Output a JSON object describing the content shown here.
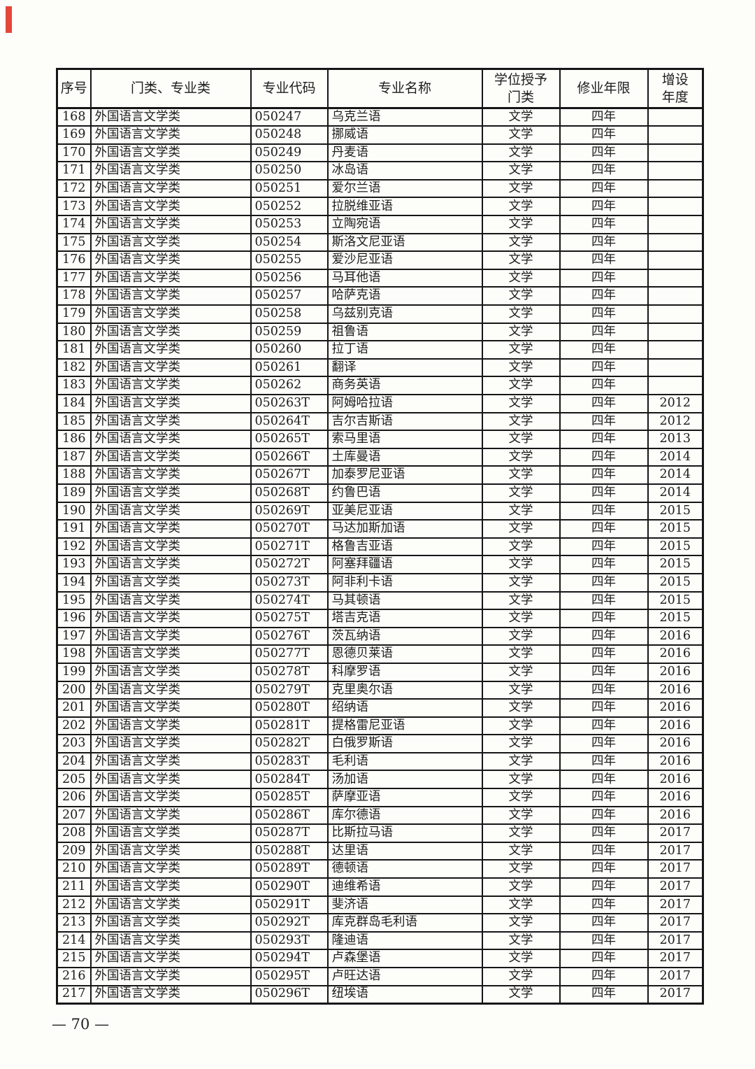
{
  "colors": {
    "accent_red": "#e4463a",
    "border": "#161616",
    "text": "#1c1c1c",
    "background": "#fdfdfa"
  },
  "page": {
    "number": "— 70 —"
  },
  "table": {
    "headers": [
      "序号",
      "门类、专业类",
      "专业代码",
      "专业名称",
      "学位授予\n门类",
      "修业年限",
      "增设\n年度"
    ],
    "rows": [
      [
        "168",
        "外国语言文学类",
        "050247",
        "乌克兰语",
        "文学",
        "四年",
        ""
      ],
      [
        "169",
        "外国语言文学类",
        "050248",
        "挪威语",
        "文学",
        "四年",
        ""
      ],
      [
        "170",
        "外国语言文学类",
        "050249",
        "丹麦语",
        "文学",
        "四年",
        ""
      ],
      [
        "171",
        "外国语言文学类",
        "050250",
        "冰岛语",
        "文学",
        "四年",
        ""
      ],
      [
        "172",
        "外国语言文学类",
        "050251",
        "爱尔兰语",
        "文学",
        "四年",
        ""
      ],
      [
        "173",
        "外国语言文学类",
        "050252",
        "拉脱维亚语",
        "文学",
        "四年",
        ""
      ],
      [
        "174",
        "外国语言文学类",
        "050253",
        "立陶宛语",
        "文学",
        "四年",
        ""
      ],
      [
        "175",
        "外国语言文学类",
        "050254",
        "斯洛文尼亚语",
        "文学",
        "四年",
        ""
      ],
      [
        "176",
        "外国语言文学类",
        "050255",
        "爱沙尼亚语",
        "文学",
        "四年",
        ""
      ],
      [
        "177",
        "外国语言文学类",
        "050256",
        "马耳他语",
        "文学",
        "四年",
        ""
      ],
      [
        "178",
        "外国语言文学类",
        "050257",
        "哈萨克语",
        "文学",
        "四年",
        ""
      ],
      [
        "179",
        "外国语言文学类",
        "050258",
        "乌兹别克语",
        "文学",
        "四年",
        ""
      ],
      [
        "180",
        "外国语言文学类",
        "050259",
        "祖鲁语",
        "文学",
        "四年",
        ""
      ],
      [
        "181",
        "外国语言文学类",
        "050260",
        "拉丁语",
        "文学",
        "四年",
        ""
      ],
      [
        "182",
        "外国语言文学类",
        "050261",
        "翻译",
        "文学",
        "四年",
        ""
      ],
      [
        "183",
        "外国语言文学类",
        "050262",
        "商务英语",
        "文学",
        "四年",
        ""
      ],
      [
        "184",
        "外国语言文学类",
        "050263T",
        "阿姆哈拉语",
        "文学",
        "四年",
        "2012"
      ],
      [
        "185",
        "外国语言文学类",
        "050264T",
        "吉尔吉斯语",
        "文学",
        "四年",
        "2012"
      ],
      [
        "186",
        "外国语言文学类",
        "050265T",
        "索马里语",
        "文学",
        "四年",
        "2013"
      ],
      [
        "187",
        "外国语言文学类",
        "050266T",
        "土库曼语",
        "文学",
        "四年",
        "2014"
      ],
      [
        "188",
        "外国语言文学类",
        "050267T",
        "加泰罗尼亚语",
        "文学",
        "四年",
        "2014"
      ],
      [
        "189",
        "外国语言文学类",
        "050268T",
        "约鲁巴语",
        "文学",
        "四年",
        "2014"
      ],
      [
        "190",
        "外国语言文学类",
        "050269T",
        "亚美尼亚语",
        "文学",
        "四年",
        "2015"
      ],
      [
        "191",
        "外国语言文学类",
        "050270T",
        "马达加斯加语",
        "文学",
        "四年",
        "2015"
      ],
      [
        "192",
        "外国语言文学类",
        "050271T",
        "格鲁吉亚语",
        "文学",
        "四年",
        "2015"
      ],
      [
        "193",
        "外国语言文学类",
        "050272T",
        "阿塞拜疆语",
        "文学",
        "四年",
        "2015"
      ],
      [
        "194",
        "外国语言文学类",
        "050273T",
        "阿非利卡语",
        "文学",
        "四年",
        "2015"
      ],
      [
        "195",
        "外国语言文学类",
        "050274T",
        "马其顿语",
        "文学",
        "四年",
        "2015"
      ],
      [
        "196",
        "外国语言文学类",
        "050275T",
        "塔吉克语",
        "文学",
        "四年",
        "2015"
      ],
      [
        "197",
        "外国语言文学类",
        "050276T",
        "茨瓦纳语",
        "文学",
        "四年",
        "2016"
      ],
      [
        "198",
        "外国语言文学类",
        "050277T",
        "恩德贝莱语",
        "文学",
        "四年",
        "2016"
      ],
      [
        "199",
        "外国语言文学类",
        "050278T",
        "科摩罗语",
        "文学",
        "四年",
        "2016"
      ],
      [
        "200",
        "外国语言文学类",
        "050279T",
        "克里奥尔语",
        "文学",
        "四年",
        "2016"
      ],
      [
        "201",
        "外国语言文学类",
        "050280T",
        "绍纳语",
        "文学",
        "四年",
        "2016"
      ],
      [
        "202",
        "外国语言文学类",
        "050281T",
        "提格雷尼亚语",
        "文学",
        "四年",
        "2016"
      ],
      [
        "203",
        "外国语言文学类",
        "050282T",
        "白俄罗斯语",
        "文学",
        "四年",
        "2016"
      ],
      [
        "204",
        "外国语言文学类",
        "050283T",
        "毛利语",
        "文学",
        "四年",
        "2016"
      ],
      [
        "205",
        "外国语言文学类",
        "050284T",
        "汤加语",
        "文学",
        "四年",
        "2016"
      ],
      [
        "206",
        "外国语言文学类",
        "050285T",
        "萨摩亚语",
        "文学",
        "四年",
        "2016"
      ],
      [
        "207",
        "外国语言文学类",
        "050286T",
        "库尔德语",
        "文学",
        "四年",
        "2016"
      ],
      [
        "208",
        "外国语言文学类",
        "050287T",
        "比斯拉马语",
        "文学",
        "四年",
        "2017"
      ],
      [
        "209",
        "外国语言文学类",
        "050288T",
        "达里语",
        "文学",
        "四年",
        "2017"
      ],
      [
        "210",
        "外国语言文学类",
        "050289T",
        "德顿语",
        "文学",
        "四年",
        "2017"
      ],
      [
        "211",
        "外国语言文学类",
        "050290T",
        "迪维希语",
        "文学",
        "四年",
        "2017"
      ],
      [
        "212",
        "外国语言文学类",
        "050291T",
        "斐济语",
        "文学",
        "四年",
        "2017"
      ],
      [
        "213",
        "外国语言文学类",
        "050292T",
        "库克群岛毛利语",
        "文学",
        "四年",
        "2017"
      ],
      [
        "214",
        "外国语言文学类",
        "050293T",
        "隆迪语",
        "文学",
        "四年",
        "2017"
      ],
      [
        "215",
        "外国语言文学类",
        "050294T",
        "卢森堡语",
        "文学",
        "四年",
        "2017"
      ],
      [
        "216",
        "外国语言文学类",
        "050295T",
        "卢旺达语",
        "文学",
        "四年",
        "2017"
      ],
      [
        "217",
        "外国语言文学类",
        "050296T",
        "纽埃语",
        "文学",
        "四年",
        "2017"
      ]
    ]
  }
}
